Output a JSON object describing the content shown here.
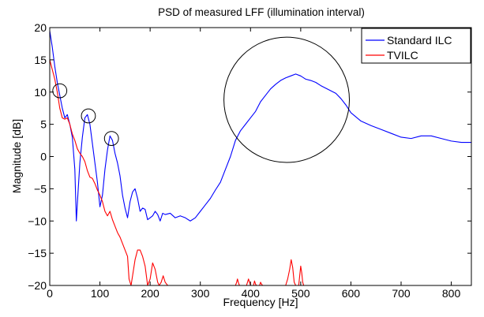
{
  "chart_data": {
    "type": "line",
    "title": "PSD of measured LFF (illumination interval)",
    "xlabel": "Frequency [Hz]",
    "ylabel": "Magnitude [dB]",
    "xlim": [
      0,
      840
    ],
    "ylim": [
      -20,
      20
    ],
    "xticks": [
      0,
      100,
      200,
      300,
      400,
      500,
      600,
      700,
      800
    ],
    "yticks": [
      -20,
      -15,
      -10,
      -5,
      0,
      5,
      10,
      15,
      20
    ],
    "xtick_labels": [
      "0",
      "100",
      "200",
      "300",
      "400",
      "500",
      "600",
      "700",
      "800"
    ],
    "ytick_labels": [
      "−20",
      "−15",
      "−10",
      "−5",
      "0",
      "5",
      "10",
      "15",
      "20"
    ],
    "grid": false,
    "legend_position": "top-right",
    "series": [
      {
        "name": "Standard ILC",
        "color": "#0000ff",
        "x": [
          0,
          5,
          10,
          15,
          20,
          25,
          30,
          35,
          40,
          45,
          50,
          53,
          56,
          60,
          65,
          70,
          75,
          80,
          85,
          90,
          95,
          100,
          105,
          110,
          115,
          120,
          125,
          130,
          135,
          140,
          145,
          150,
          155,
          160,
          165,
          170,
          175,
          180,
          185,
          190,
          195,
          200,
          205,
          210,
          215,
          220,
          225,
          230,
          240,
          250,
          260,
          270,
          280,
          290,
          300,
          310,
          320,
          330,
          340,
          350,
          360,
          370,
          380,
          390,
          400,
          410,
          420,
          430,
          440,
          450,
          460,
          470,
          480,
          490,
          500,
          510,
          520,
          530,
          540,
          550,
          560,
          570,
          580,
          590,
          600,
          620,
          640,
          660,
          680,
          700,
          720,
          740,
          760,
          780,
          800,
          820,
          840
        ],
        "y": [
          19.5,
          17,
          14,
          11.5,
          9.5,
          7.5,
          6,
          6.5,
          5,
          3,
          -2,
          -10,
          -6,
          -1,
          3,
          6,
          6.5,
          5,
          2,
          -1,
          -4,
          -7.8,
          -6,
          -2,
          1,
          3.2,
          2.5,
          0.5,
          -1,
          -3,
          -6,
          -8,
          -9.5,
          -7,
          -5.5,
          -5,
          -6.5,
          -8.5,
          -8,
          -8.2,
          -9.8,
          -9.5,
          -9.2,
          -8.5,
          -9,
          -10,
          -8.8,
          -9,
          -8.8,
          -9.5,
          -9.2,
          -9.5,
          -10,
          -9.5,
          -8.5,
          -7.5,
          -6.5,
          -5.2,
          -4,
          -2,
          0,
          2.5,
          4,
          5,
          6,
          7,
          8.5,
          9.5,
          10.5,
          11.2,
          11.8,
          12.2,
          12.5,
          12.8,
          12.5,
          12,
          11.8,
          11.5,
          11,
          10.6,
          10.2,
          9.8,
          9,
          8,
          6.8,
          5.5,
          4.8,
          4.2,
          3.6,
          3,
          2.8,
          3.2,
          3.2,
          2.8,
          2.4,
          2.2,
          2.2
        ]
      },
      {
        "name": "TVILC",
        "color": "#ff0000",
        "x": [
          0,
          5,
          10,
          15,
          20,
          25,
          30,
          35,
          40,
          45,
          50,
          55,
          60,
          65,
          70,
          75,
          80,
          85,
          90,
          95,
          100,
          105,
          110,
          115,
          120,
          125,
          130,
          135,
          140,
          145,
          150,
          155,
          158,
          162,
          166,
          170,
          175,
          180,
          185,
          190,
          195,
          200,
          205,
          210,
          215,
          218,
          222,
          226,
          230,
          235
        ],
        "y": [
          15,
          13.5,
          12,
          10,
          7.5,
          6,
          5.8,
          6,
          5,
          3.5,
          2.5,
          1.2,
          0.5,
          0,
          -0.8,
          -2.2,
          -3.2,
          -3.4,
          -4.2,
          -5.2,
          -6,
          -7,
          -8.5,
          -9.2,
          -8.5,
          -9.8,
          -10.8,
          -11.8,
          -12.5,
          -13.5,
          -14.5,
          -15.5,
          -19,
          -20,
          -18,
          -16,
          -14.5,
          -14.5,
          -15.5,
          -17,
          -20,
          -19,
          -16.5,
          -17.5,
          -19.5,
          -20,
          -19.5,
          -18.5,
          -19.5,
          -20
        ],
        "extra_segments": [
          {
            "x": [
              370,
              372,
              374,
              376,
              378,
              380
            ],
            "y": [
              -20,
              -19.6,
              -19,
              -19.6,
              -20,
              -20
            ]
          },
          {
            "x": [
              392,
              394,
              396,
              398,
              400
            ],
            "y": [
              -20,
              -19.5,
              -19,
              -19.5,
              -20
            ]
          },
          {
            "x": [
              406,
              408,
              410,
              412
            ],
            "y": [
              -20,
              -19.3,
              -19.8,
              -20
            ]
          },
          {
            "x": [
              418,
              420,
              422,
              424
            ],
            "y": [
              -20,
              -19.5,
              -19.8,
              -20
            ]
          },
          {
            "x": [
              470,
              474,
              478,
              481,
              484,
              487,
              490,
              493
            ],
            "y": [
              -20,
              -19,
              -17.5,
              -16,
              -17.2,
              -19.5,
              -20,
              -20
            ]
          },
          {
            "x": [
              496,
              498,
              500,
              502,
              504,
              506
            ],
            "y": [
              -20,
              -18.5,
              -17,
              -18,
              -19.5,
              -20
            ]
          }
        ]
      }
    ],
    "annotations": [
      {
        "type": "circle",
        "cx": 20,
        "cy": 10.2,
        "r_x_units": 14
      },
      {
        "type": "circle",
        "cx": 77,
        "cy": 6.3,
        "r_x_units": 14
      },
      {
        "type": "circle",
        "cx": 123,
        "cy": 2.8,
        "r_x_units": 14
      },
      {
        "type": "circle",
        "cx": 472,
        "cy": 8.8,
        "r_x_units": 125
      }
    ]
  }
}
